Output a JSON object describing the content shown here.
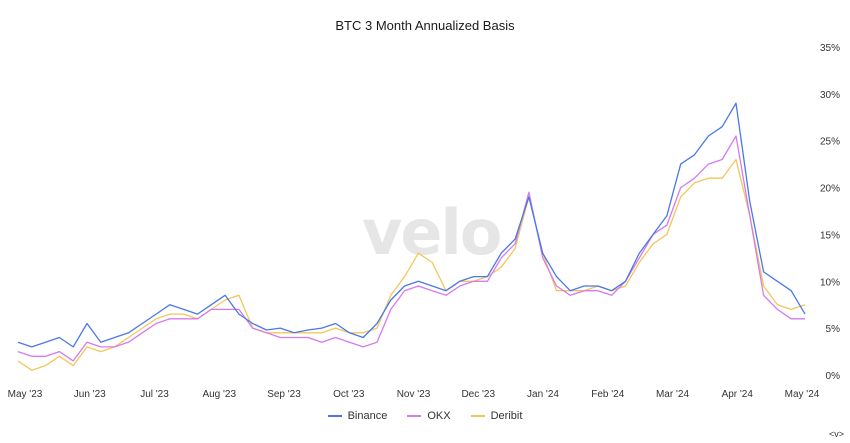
{
  "chart_data": {
    "type": "line",
    "title": "BTC 3 Month Annualized Basis",
    "watermark": "velo",
    "ylim": [
      0,
      35
    ],
    "y_ticks": [
      "0%",
      "5%",
      "10%",
      "15%",
      "20%",
      "25%",
      "30%",
      "35%"
    ],
    "y_axis_side": "right",
    "x_ticks": [
      "May '23",
      "Jun '23",
      "Jul '23",
      "Aug '23",
      "Sep '23",
      "Oct '23",
      "Nov '23",
      "Dec '23",
      "Jan '24",
      "Feb '24",
      "Mar '24",
      "Apr '24",
      "May '24"
    ],
    "grid": false,
    "legend_position": "bottom",
    "series": [
      {
        "name": "Binance",
        "color": "#4a78e8",
        "values": [
          3.5,
          3.0,
          3.5,
          4.0,
          3.0,
          5.5,
          3.5,
          4.0,
          4.5,
          5.5,
          6.5,
          7.5,
          7.0,
          6.5,
          7.5,
          8.5,
          6.5,
          5.5,
          4.8,
          5.0,
          4.5,
          4.8,
          5.0,
          5.5,
          4.5,
          4.0,
          5.5,
          8.0,
          9.5,
          10.0,
          9.5,
          9.0,
          10.0,
          10.5,
          10.5,
          13.0,
          14.5,
          19.0,
          13.0,
          10.5,
          9.0,
          9.5,
          9.5,
          9.0,
          10.0,
          13.0,
          15.0,
          17.0,
          22.5,
          23.5,
          25.5,
          26.5,
          29.0,
          18.5,
          11.0,
          10.0,
          9.0,
          6.5
        ]
      },
      {
        "name": "OKX",
        "color": "#d57af0",
        "values": [
          2.5,
          2.0,
          2.0,
          2.5,
          1.5,
          3.5,
          3.0,
          3.0,
          3.5,
          4.5,
          5.5,
          6.0,
          6.0,
          6.0,
          7.0,
          7.0,
          7.0,
          5.0,
          4.5,
          4.0,
          4.0,
          4.0,
          3.5,
          4.0,
          3.5,
          3.0,
          3.5,
          7.0,
          9.0,
          9.5,
          9.0,
          8.5,
          9.5,
          10.0,
          10.0,
          12.5,
          14.0,
          19.5,
          12.5,
          9.5,
          8.5,
          9.0,
          9.0,
          8.5,
          10.0,
          12.5,
          15.0,
          16.0,
          20.0,
          21.0,
          22.5,
          23.0,
          25.5,
          17.0,
          8.5,
          7.0,
          6.0,
          6.0
        ]
      },
      {
        "name": "Deribit",
        "color": "#f2c75a",
        "values": [
          1.5,
          0.5,
          1.0,
          2.0,
          1.0,
          3.0,
          2.5,
          3.0,
          4.0,
          5.0,
          6.0,
          6.5,
          6.5,
          6.0,
          7.0,
          8.0,
          8.5,
          5.0,
          4.5,
          4.5,
          4.5,
          4.5,
          4.5,
          5.0,
          4.5,
          4.5,
          5.0,
          8.5,
          10.5,
          13.0,
          12.0,
          9.0,
          10.0,
          10.0,
          10.5,
          11.5,
          13.5,
          19.0,
          13.0,
          9.0,
          9.0,
          9.0,
          9.5,
          9.0,
          9.5,
          12.0,
          14.0,
          15.0,
          19.0,
          20.5,
          21.0,
          21.0,
          23.0,
          17.0,
          9.5,
          7.5,
          7.0,
          7.5
        ]
      }
    ]
  }
}
